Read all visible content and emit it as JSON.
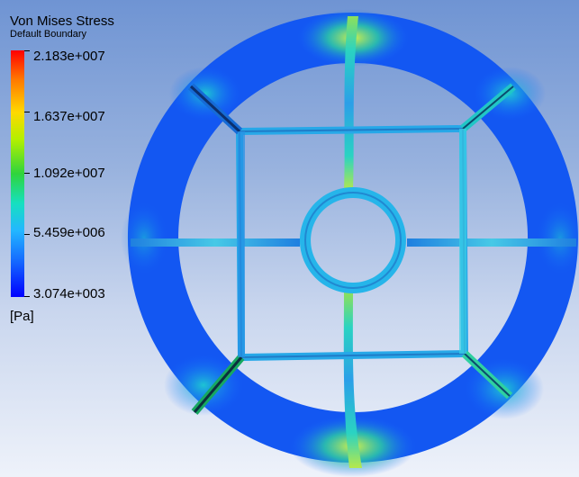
{
  "legend": {
    "title": "Von Mises Stress",
    "subtitle": "Default Boundary",
    "unit": "[Pa]",
    "ticks": [
      "2.183e+007",
      "1.637e+007",
      "1.092e+007",
      "5.459e+006",
      "3.074e+003"
    ]
  },
  "colors": {
    "max": "#ff0000",
    "high": "#ffd800",
    "mid": "#2fd43c",
    "low": "#23b7ff",
    "min": "#0000ff"
  },
  "model": {
    "icon": "stress-contour-wheel"
  }
}
